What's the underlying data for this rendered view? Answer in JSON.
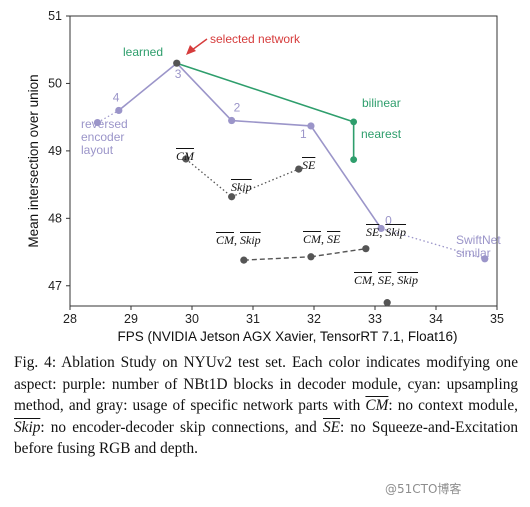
{
  "chart_data": {
    "type": "scatter",
    "xlabel": "FPS (NVIDIA Jetson AGX Xavier, TensorRT 7.1, Float16)",
    "ylabel": "Mean intersection over union",
    "xlim": [
      28,
      35
    ],
    "ylim": [
      46.7,
      51
    ],
    "xticks": [
      "28",
      "29",
      "30",
      "31",
      "32",
      "33",
      "34",
      "35"
    ],
    "yticks": [
      "47",
      "48",
      "49",
      "50",
      "51"
    ],
    "grid": false,
    "colors": {
      "purple": "#9b95c9",
      "green": "#2e9e6c",
      "gray": "#555555",
      "red": "#d63c3c"
    },
    "series": [
      {
        "points": [
          {
            "x": 28.45,
            "y": 49.42,
            "label": ""
          },
          {
            "x": 28.8,
            "y": 49.6,
            "label": "4"
          },
          {
            "x": 29.75,
            "y": 50.3,
            "label": "3"
          },
          {
            "x": 30.65,
            "y": 49.45,
            "label": "2"
          },
          {
            "x": 31.95,
            "y": 49.37,
            "label": "1"
          },
          {
            "x": 33.1,
            "y": 47.85,
            "label": "0"
          },
          {
            "x": 34.8,
            "y": 47.4,
            "label": ""
          }
        ]
      },
      {
        "points": [
          {
            "x": 29.75,
            "y": 50.3,
            "label": ""
          },
          {
            "x": 32.65,
            "y": 49.43,
            "label": ""
          },
          {
            "x": 32.65,
            "y": 48.87,
            "label": ""
          }
        ]
      },
      {
        "points": [
          {
            "x": 29.9,
            "y": 48.88
          },
          {
            "x": 30.65,
            "y": 48.32
          },
          {
            "x": 31.75,
            "y": 48.73
          },
          {
            "x": 30.85,
            "y": 47.38
          },
          {
            "x": 31.95,
            "y": 47.43
          },
          {
            "x": 32.85,
            "y": 47.55
          },
          {
            "x": 33.2,
            "y": 46.75
          }
        ]
      }
    ],
    "annotations": {
      "learned": "learned",
      "selected": "selected network",
      "reversed": [
        "reversed",
        "encoder",
        "layout"
      ],
      "bilinear": "bilinear",
      "nearest": "nearest",
      "swiftnet": [
        "SwiftNet",
        "similar"
      ]
    },
    "math_labels": {
      "cm": "CM",
      "skip": "Skip",
      "se": "SE",
      "sep": ", "
    }
  },
  "caption": {
    "part1": "Fig. 4: Ablation Study on NYUv2 test set. Each color indicates modifying one aspect: purple: number of NBt1D blocks in decoder module, cyan: upsampling method, and gray: usage of specific network parts with ",
    "cm": "CM",
    "part2": ": no context module, ",
    "skip": "Skip",
    "part3": ": no encoder-decoder skip connections, and ",
    "se": "SE",
    "part4": ": no Squeeze-and-Excitation before fusing RGB and depth."
  },
  "watermark": "@51CTO博客"
}
